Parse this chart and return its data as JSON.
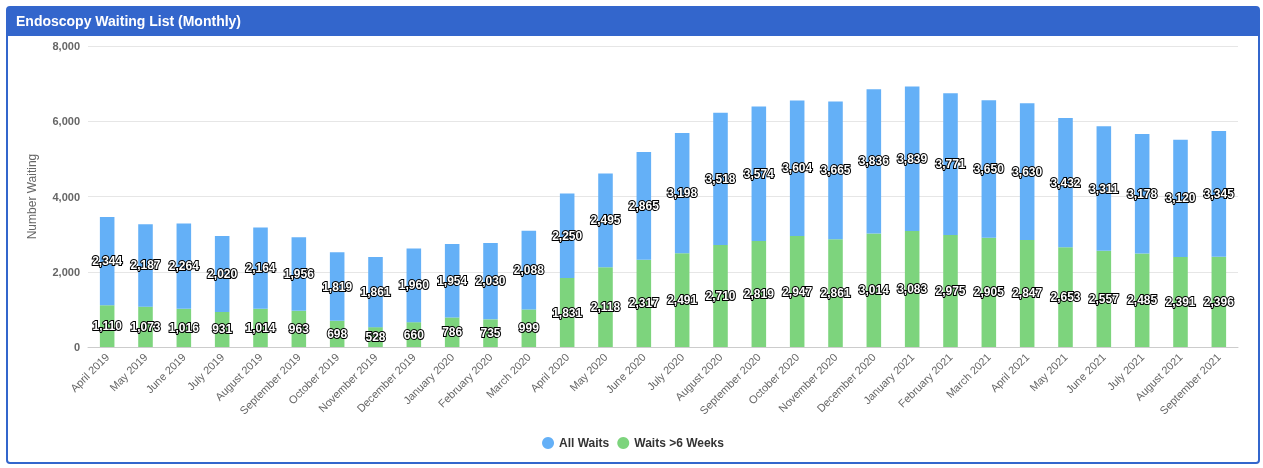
{
  "chart_data": {
    "type": "bar",
    "title": "Endoscopy Waiting List (Monthly)",
    "ylabel": "Number Waiting",
    "categories": [
      "April 2019",
      "May 2019",
      "June 2019",
      "July 2019",
      "August 2019",
      "September 2019",
      "October 2019",
      "November 2019",
      "December 2019",
      "January 2020",
      "February 2020",
      "March 2020",
      "April 2020",
      "May 2020",
      "June 2020",
      "July 2020",
      "August 2020",
      "September 2020",
      "October 2020",
      "November 2020",
      "December 2020",
      "January 2021",
      "February 2021",
      "March 2021",
      "April 2021",
      "May 2021",
      "June 2021",
      "July 2021",
      "August 2021",
      "September 2021"
    ],
    "series": [
      {
        "name": "Waits >6 Weeks",
        "color": "#7dd47d",
        "values": [
          1110,
          1073,
          1016,
          931,
          1014,
          963,
          698,
          528,
          660,
          786,
          735,
          999,
          1831,
          2118,
          2317,
          2491,
          2710,
          2819,
          2947,
          2861,
          3014,
          3083,
          2975,
          2905,
          2847,
          2653,
          2557,
          2485,
          2391,
          2396
        ],
        "value_labels": [
          "1,110",
          "1,073",
          "1,016",
          "931",
          "1,014",
          "963",
          "698",
          "528",
          "660",
          "786",
          "735",
          "999",
          "1,831",
          "2,118",
          "2,317",
          "2,491",
          "2,710",
          "2,819",
          "2,947",
          "2,861",
          "3,014",
          "3,083",
          "2,975",
          "2,905",
          "2,847",
          "2,653",
          "2,557",
          "2,485",
          "2,391",
          "2,396"
        ]
      },
      {
        "name": "All Waits",
        "color": "#64b0f7",
        "values": [
          2344,
          2187,
          2264,
          2020,
          2164,
          1956,
          1819,
          1861,
          1960,
          1954,
          2030,
          2088,
          2250,
          2495,
          2865,
          3198,
          3518,
          3574,
          3604,
          3665,
          3836,
          3839,
          3771,
          3650,
          3630,
          3432,
          3311,
          3178,
          3120,
          3345
        ],
        "value_labels": [
          "2,344",
          "2,187",
          "2,264",
          "2,020",
          "2,164",
          "1,956",
          "1,819",
          "1,861",
          "1,960",
          "1,954",
          "2,030",
          "2,088",
          "2,250",
          "2,495",
          "2,865",
          "3,198",
          "3,518",
          "3,574",
          "3,604",
          "3,665",
          "3,836",
          "3,839",
          "3,771",
          "3,650",
          "3,630",
          "3,432",
          "3,311",
          "3,178",
          "3,120",
          "3,345"
        ]
      }
    ],
    "stacked": true,
    "ylim": [
      0,
      8000
    ],
    "yticks": [
      0,
      {
        "value": 2000,
        "label": "2,000"
      },
      {
        "value": 4000,
        "label": "4,000"
      },
      {
        "value": 6000,
        "label": "6,000"
      },
      {
        "value": 8000,
        "label": "8,000"
      }
    ],
    "grid": "y",
    "legend": "bottom"
  }
}
